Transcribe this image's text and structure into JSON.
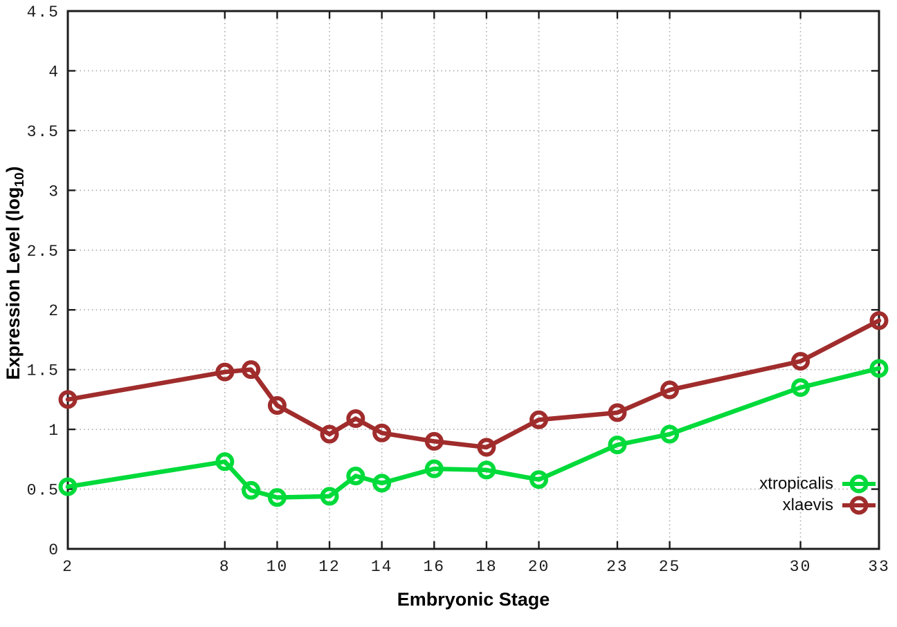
{
  "chart_data": {
    "type": "line",
    "title": "",
    "xlabel": "Embryonic Stage",
    "ylabel": "Expression Level (log10)",
    "ylabel_parts": {
      "pre": "Expression Level (log",
      "sub": "10",
      "post": ")"
    },
    "xlim": [
      2,
      33
    ],
    "ylim": [
      0,
      4.5
    ],
    "x_ticks": [
      2,
      8,
      10,
      12,
      14,
      16,
      18,
      20,
      23,
      25,
      30,
      33
    ],
    "y_ticks": [
      0,
      0.5,
      1,
      1.5,
      2,
      2.5,
      3,
      3.5,
      4,
      4.5
    ],
    "grid": true,
    "grid_style": "dotted",
    "legend_position": "bottom-right",
    "marker": "open-circle",
    "x": [
      2,
      8,
      9,
      10,
      12,
      13,
      14,
      16,
      18,
      20,
      23,
      25,
      30,
      33
    ],
    "series": [
      {
        "name": "xtropicalis",
        "color": "#00da3a",
        "values": [
          0.52,
          0.73,
          0.49,
          0.43,
          0.44,
          0.61,
          0.55,
          0.67,
          0.66,
          0.58,
          0.87,
          0.96,
          1.35,
          1.51
        ]
      },
      {
        "name": "xlaevis",
        "color": "#a02c2c",
        "values": [
          1.25,
          1.48,
          1.5,
          1.2,
          0.96,
          1.09,
          0.97,
          0.9,
          0.85,
          1.08,
          1.14,
          1.33,
          1.57,
          1.91
        ]
      }
    ],
    "colors": {
      "border": "#1c1c1c",
      "grid": "#ababab",
      "tick_text": "#1c1c1c"
    }
  }
}
